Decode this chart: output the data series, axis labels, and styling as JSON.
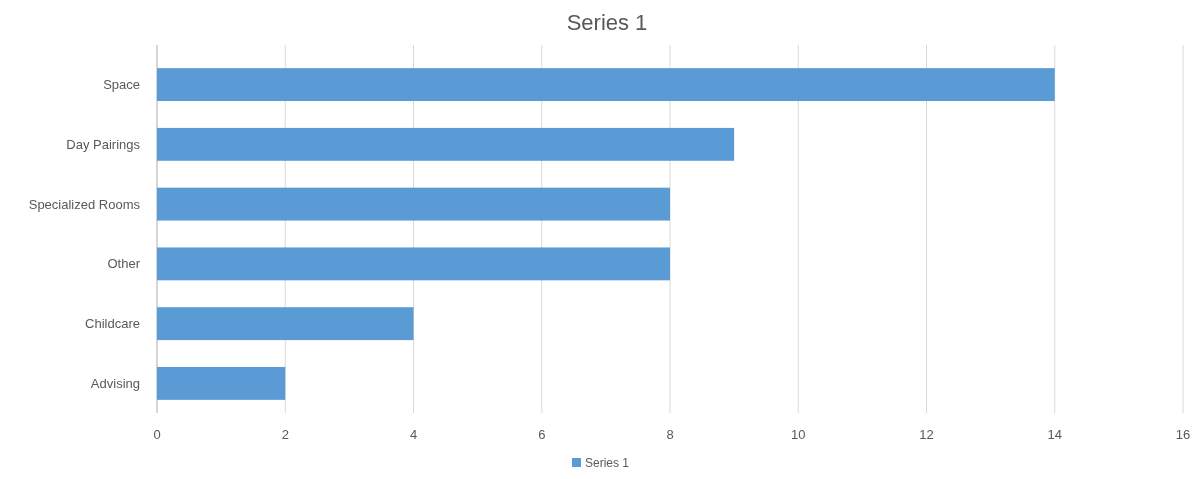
{
  "chart_data": {
    "type": "bar",
    "orientation": "horizontal",
    "title": "Series 1",
    "categories": [
      "Space",
      "Day Pairings",
      "Specialized Rooms",
      "Other",
      "Childcare",
      "Advising"
    ],
    "series": [
      {
        "name": "Series 1",
        "color": "#5b9bd5",
        "values": [
          14,
          9,
          8,
          8,
          4,
          2
        ]
      }
    ],
    "xlim": [
      0,
      16
    ],
    "xticks": [
      0,
      2,
      4,
      6,
      8,
      10,
      12,
      14,
      16
    ],
    "grid": "x",
    "legend": "bottom"
  }
}
